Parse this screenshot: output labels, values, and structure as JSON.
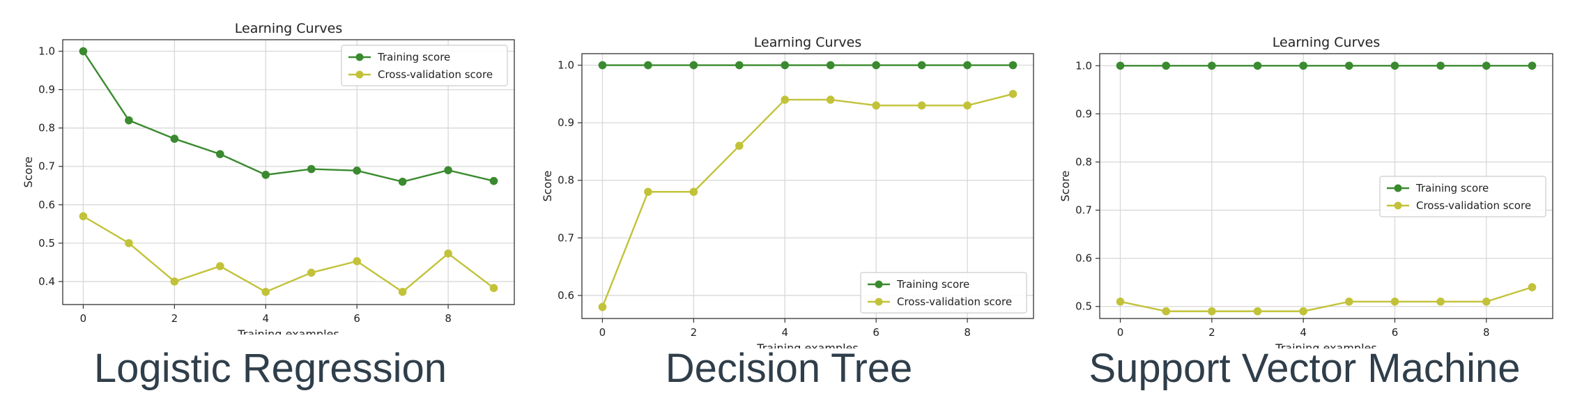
{
  "colors": {
    "training": "#3a8a2f",
    "cv": "#c2c23a",
    "grid": "#d8d8d8",
    "axis": "#333333",
    "caption": "#2f3e4a"
  },
  "captions": [
    "Logistic Regression",
    "Decision Tree",
    "Support Vector Machine"
  ],
  "chart_data": [
    {
      "type": "line",
      "title": "Learning Curves",
      "xlabel": "Training examples",
      "ylabel": "Score",
      "x": [
        0,
        1,
        2,
        3,
        4,
        5,
        6,
        7,
        8,
        9
      ],
      "xlim": [
        -0.45,
        9.45
      ],
      "ylim": [
        0.34,
        1.03
      ],
      "xticks": [
        0,
        2,
        4,
        6,
        8
      ],
      "xtick_labels": [
        "0",
        "2",
        "4",
        "6",
        "8"
      ],
      "yticks": [
        0.4,
        0.5,
        0.6,
        0.7,
        0.8,
        0.9,
        1.0
      ],
      "ytick_labels": [
        "0.4",
        "0.5",
        "0.6",
        "0.7",
        "0.8",
        "0.9",
        "1.0"
      ],
      "grid": true,
      "legend_position": "top-right",
      "series": [
        {
          "name": "Training score",
          "values": [
            1.0,
            0.82,
            0.772,
            0.732,
            0.678,
            0.693,
            0.689,
            0.66,
            0.69,
            0.662
          ]
        },
        {
          "name": "Cross-validation score",
          "values": [
            0.57,
            0.5,
            0.4,
            0.44,
            0.373,
            0.423,
            0.453,
            0.373,
            0.473,
            0.383
          ]
        }
      ]
    },
    {
      "type": "line",
      "title": "Learning Curves",
      "xlabel": "Training examples",
      "ylabel": "Score",
      "x": [
        0,
        1,
        2,
        3,
        4,
        5,
        6,
        7,
        8,
        9
      ],
      "xlim": [
        -0.45,
        9.45
      ],
      "ylim": [
        0.56,
        1.02
      ],
      "xticks": [
        0,
        2,
        4,
        6,
        8
      ],
      "xtick_labels": [
        "0",
        "2",
        "4",
        "6",
        "8"
      ],
      "yticks": [
        0.6,
        0.7,
        0.8,
        0.9,
        1.0
      ],
      "ytick_labels": [
        "0.6",
        "0.7",
        "0.8",
        "0.9",
        "1.0"
      ],
      "grid": true,
      "legend_position": "bottom-right",
      "series": [
        {
          "name": "Training score",
          "values": [
            1.0,
            1.0,
            1.0,
            1.0,
            1.0,
            1.0,
            1.0,
            1.0,
            1.0,
            1.0
          ]
        },
        {
          "name": "Cross-validation score",
          "values": [
            0.58,
            0.78,
            0.78,
            0.86,
            0.94,
            0.94,
            0.93,
            0.93,
            0.93,
            0.95
          ]
        }
      ]
    },
    {
      "type": "line",
      "title": "Learning Curves",
      "xlabel": "Training examples",
      "ylabel": "Score",
      "x": [
        0,
        1,
        2,
        3,
        4,
        5,
        6,
        7,
        8,
        9
      ],
      "xlim": [
        -0.45,
        9.45
      ],
      "ylim": [
        0.475,
        1.025
      ],
      "xticks": [
        0,
        2,
        4,
        6,
        8
      ],
      "xtick_labels": [
        "0",
        "2",
        "4",
        "6",
        "8"
      ],
      "yticks": [
        0.5,
        0.6,
        0.7,
        0.8,
        0.9,
        1.0
      ],
      "ytick_labels": [
        "0.5",
        "0.6",
        "0.7",
        "0.8",
        "0.9",
        "1.0"
      ],
      "grid": true,
      "legend_position": "center-right",
      "series": [
        {
          "name": "Training score",
          "values": [
            1.0,
            1.0,
            1.0,
            1.0,
            1.0,
            1.0,
            1.0,
            1.0,
            1.0,
            1.0
          ]
        },
        {
          "name": "Cross-validation score",
          "values": [
            0.51,
            0.49,
            0.49,
            0.49,
            0.49,
            0.51,
            0.51,
            0.51,
            0.51,
            0.54
          ]
        }
      ]
    }
  ]
}
